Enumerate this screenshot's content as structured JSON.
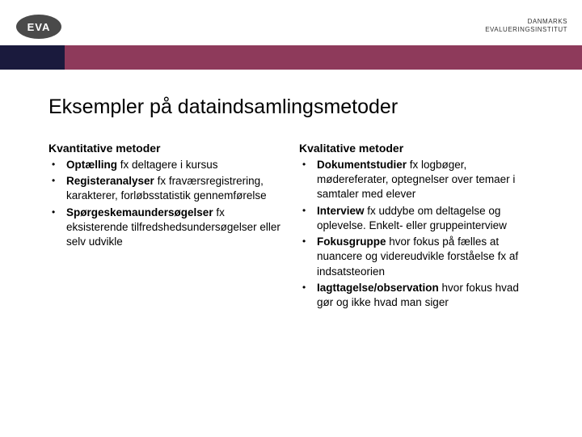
{
  "logo": "EVA",
  "org_line1": "DANMARKS",
  "org_line2": "EVALUERINGSINSTITUT",
  "colors": {
    "stripe_dark": "#1a1a3d",
    "stripe_maroon": "#8e3a5b",
    "logo_bg": "#4a4a4a",
    "text": "#000000",
    "bg": "#ffffff"
  },
  "title": "Eksempler på dataindsamlingsmetoder",
  "left": {
    "heading": "Kvantitative metoder",
    "items": [
      {
        "bold": "Optælling",
        "rest": " fx deltagere i kursus"
      },
      {
        "bold": "Registeranalyser",
        "rest": " fx fraværsregistrering, karakterer, forløbsstatistik gennemførelse"
      },
      {
        "bold": "Spørgeskemaundersøgelser",
        "rest": " fx eksisterende tilfredshedsundersøgelser eller selv udvikle"
      }
    ]
  },
  "right": {
    "heading": "Kvalitative metoder",
    "items": [
      {
        "bold": "Dokumentstudier",
        "rest": " fx logbøger, mødereferater, optegnelser over temaer i samtaler med elever"
      },
      {
        "bold": "Interview",
        "rest": " fx uddybe om deltagelse og oplevelse. Enkelt- eller gruppeinterview"
      },
      {
        "bold": "Fokusgruppe",
        "rest": " hvor fokus på fælles at nuancere og videreudvikle forståelse fx af indsatsteorien"
      },
      {
        "bold": "Iagttagelse/observation",
        "rest": " hvor fokus hvad gør og ikke hvad man siger"
      }
    ]
  }
}
